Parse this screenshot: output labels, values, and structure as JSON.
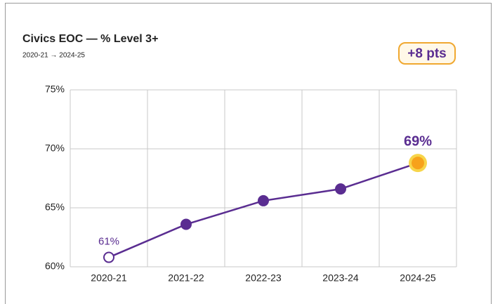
{
  "chart_data": {
    "type": "line",
    "title": "Civics EOC — % Level 3+",
    "subtitle": "2020-21 → 2024-25",
    "annotation": "+8 pts",
    "categories": [
      "2020-21",
      "2021-22",
      "2022-23",
      "2023-24",
      "2024-25"
    ],
    "values": [
      60.8,
      63.6,
      65.6,
      66.6,
      68.8
    ],
    "value_labels": [
      "61%",
      null,
      null,
      null,
      "69%"
    ],
    "color": "#5a2d91",
    "highlight_color": "#f7a21b",
    "ylim": [
      60,
      75
    ],
    "yticks": [
      {
        "value": 60,
        "label": "60%"
      },
      {
        "value": 65,
        "label": "65%"
      },
      {
        "value": 70,
        "label": "70%"
      },
      {
        "value": 75,
        "label": "75%"
      }
    ],
    "grid": true
  }
}
